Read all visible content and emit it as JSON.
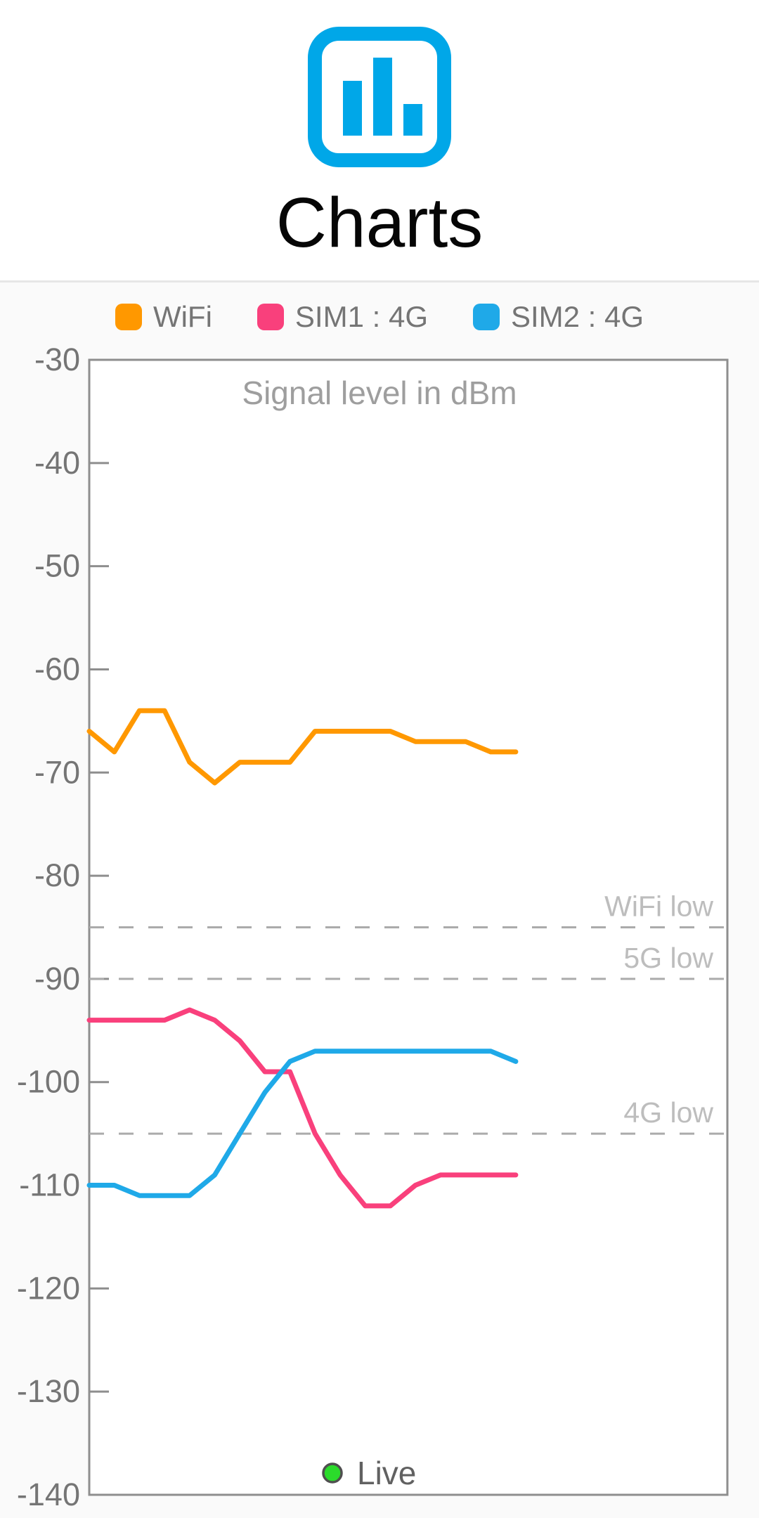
{
  "header": {
    "title": "Charts",
    "icon_color": "#00A7E8"
  },
  "legend": {
    "items": [
      {
        "label": "WiFi",
        "color": "#FF9800"
      },
      {
        "label": "SIM1 : 4G",
        "color": "#F9407C"
      },
      {
        "label": "SIM2 : 4G",
        "color": "#1FA9E8"
      }
    ]
  },
  "chart_data": {
    "type": "line",
    "title": "Signal level in dBm",
    "xlabel": "",
    "ylabel": "",
    "ylim": [
      -140,
      -30
    ],
    "y_ticks": [
      -30,
      -40,
      -50,
      -60,
      -70,
      -80,
      -90,
      -100,
      -110,
      -120,
      -130,
      -140
    ],
    "x_labels_visible": false,
    "grid": "off",
    "legend_position": "top",
    "series": [
      {
        "name": "WiFi",
        "color": "#FF9800",
        "values": [
          -66,
          -68,
          -64,
          -64,
          -69,
          -71,
          -69,
          -69,
          -69,
          -66,
          -66,
          -66,
          -66,
          -67,
          -67,
          -67,
          -68,
          -68
        ]
      },
      {
        "name": "SIM1 : 4G",
        "color": "#F9407C",
        "values": [
          -94,
          -94,
          -94,
          -94,
          -93,
          -94,
          -96,
          -99,
          -99,
          -105,
          -109,
          -112,
          -112,
          -110,
          -109,
          -109,
          -109,
          -109
        ]
      },
      {
        "name": "SIM2 : 4G",
        "color": "#1FA9E8",
        "values": [
          -110,
          -110,
          -111,
          -111,
          -111,
          -109,
          -105,
          -101,
          -98,
          -97,
          -97,
          -97,
          -97,
          -97,
          -97,
          -97,
          -97,
          -98
        ]
      }
    ],
    "thresholds": [
      {
        "label": "WiFi low",
        "value": -85
      },
      {
        "label": "5G low",
        "value": -90
      },
      {
        "label": "4G low",
        "value": -105
      }
    ],
    "live_indicator": {
      "label": "Live",
      "dot_color": "#2BDB2B"
    }
  }
}
